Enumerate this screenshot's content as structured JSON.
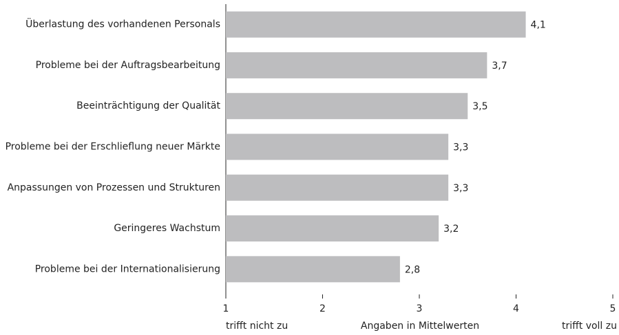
{
  "chart_data": {
    "type": "hbar",
    "categories": [
      "Überlastung des vorhandenen Personals",
      "Probleme bei der Auftragsbearbeitung",
      "Beeinträchtigung der Qualität",
      "Probleme bei der Erschlieflung neuer Märkte",
      "Anpassungen von Prozessen und Strukturen",
      "Geringeres Wachstum",
      "Probleme bei der Internationalisierung"
    ],
    "values": [
      4.1,
      3.7,
      3.5,
      3.3,
      3.3,
      3.2,
      2.8
    ],
    "value_labels": [
      "4,1",
      "3,7",
      "3,5",
      "3,3",
      "3,3",
      "3,2",
      "2,8"
    ],
    "color": "#bdbdbf",
    "xlim": [
      1,
      5
    ],
    "xticks": [
      1,
      2,
      3,
      4,
      5
    ],
    "xlabel": "Angaben in Mittelwerten",
    "x_end_labels": [
      "trifft nicht zu",
      "trifft voll zu"
    ]
  }
}
